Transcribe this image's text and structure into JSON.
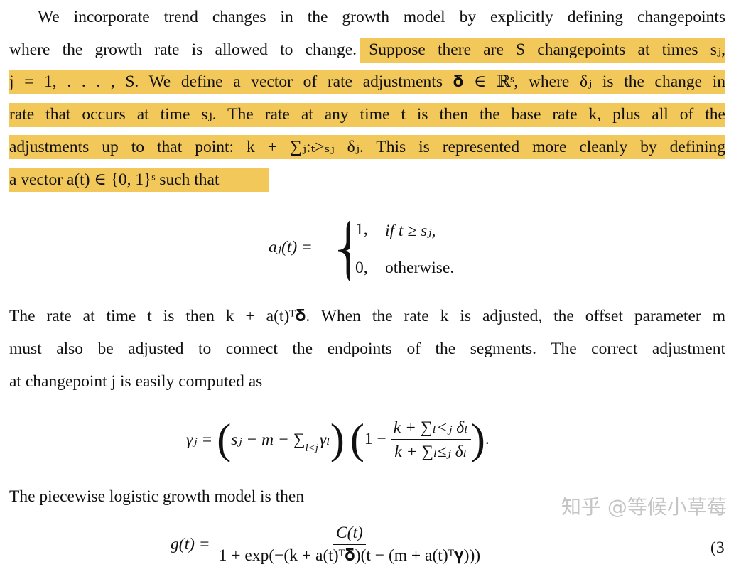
{
  "paragraph1": {
    "lines": [
      "We incorporate trend changes in the growth model by explicitly defining changepoints",
      "where the growth rate is allowed to change. Suppose there are S changepoints at times sⱼ,",
      "j = 1, . . . , S.  We define a vector of rate adjustments 𝛅 ∈ ℝˢ, where δⱼ is the change in",
      "rate that occurs at time sⱼ. The rate at any time t is then the base rate k, plus all of the",
      "adjustments up to that point: k + ∑ⱼ:ₜ>ₛⱼ δⱼ. This is represented more cleanly by defining",
      "a vector a(t) ∈ {0, 1}ˢ such that"
    ],
    "highlight_color": "#f2c85b"
  },
  "equation1": {
    "lhs": "aⱼ(t) =",
    "cases": [
      {
        "value": "1,",
        "condition": "if t ≥ sⱼ,"
      },
      {
        "value": "0,",
        "condition": "otherwise."
      }
    ]
  },
  "paragraph2": {
    "lines": [
      "The rate at time t is then k + a(t)ᵀ𝛅. When the rate k is adjusted, the offset parameter m",
      "must also be adjusted to connect the endpoints of the segments. The correct adjustment",
      "at changepoint j is easily computed as"
    ]
  },
  "equation2": {
    "lhs": "γⱼ =",
    "first_factor": "sⱼ − m − ∑",
    "sum_sub": "l<j",
    "sum_term": "γₗ",
    "second_prefix": "1 −",
    "numerator": "k + ∑ₗ<ⱼ δₗ",
    "denominator": "k + ∑ₗ≤ⱼ δₗ",
    "end": "."
  },
  "paragraph3": {
    "line": "The piecewise logistic growth model is then"
  },
  "equation3": {
    "lhs": "g(t) =",
    "numerator": "C(t)",
    "denominator": "1 + exp(−(k + a(t)ᵀ𝛅)(t − (m + a(t)ᵀ𝛄)))",
    "number": "(3"
  },
  "watermark": "知乎 @等候小草莓"
}
